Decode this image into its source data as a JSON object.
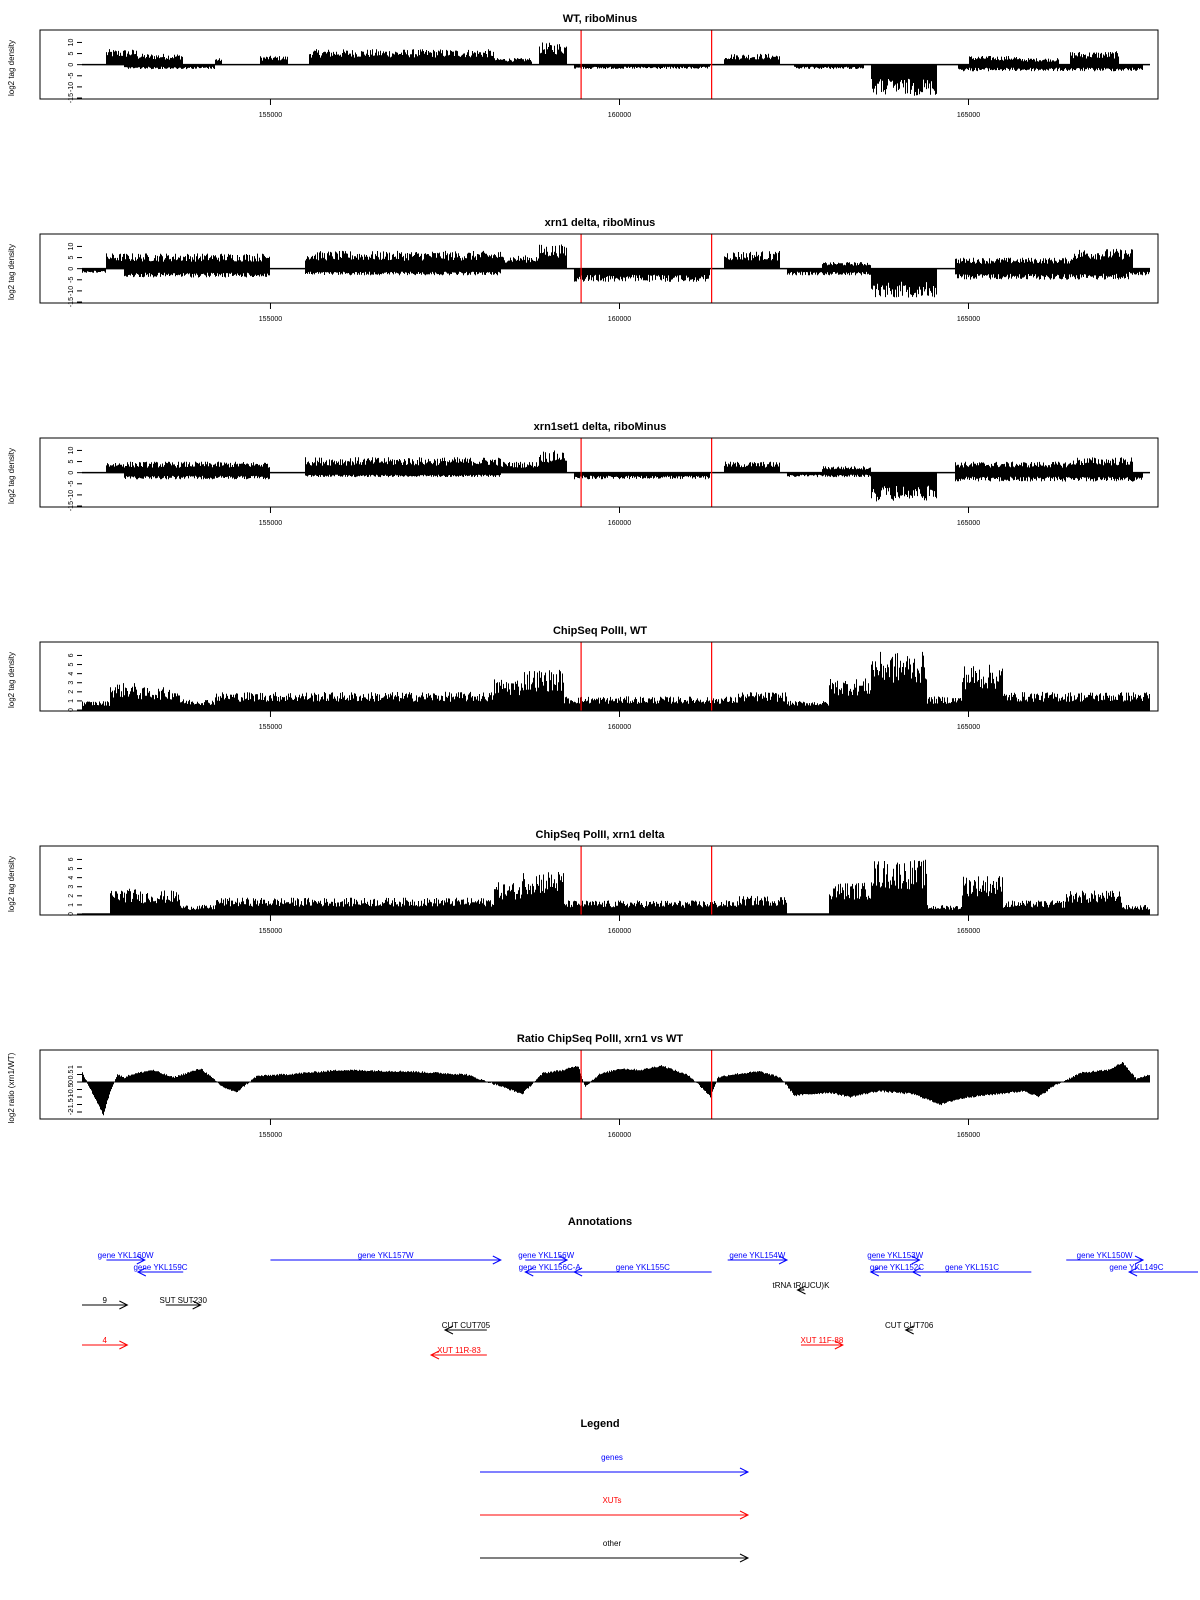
{
  "chart_data": [
    {
      "type": "area",
      "title": "WT, riboMinus",
      "ylabel": "log2 tag density",
      "xlim": [
        152300,
        167600
      ],
      "ylim": [
        -15,
        12
      ],
      "yticks": [
        -15,
        -10,
        -5,
        0,
        5,
        10
      ],
      "xticks": [
        155000,
        160000,
        165000
      ],
      "markers": [
        159450,
        161320
      ],
      "series": [
        {
          "direction": "up",
          "segments": [
            {
              "start": 152650,
              "end": 153100,
              "value": 7
            },
            {
              "start": 153100,
              "end": 153750,
              "value": 5
            },
            {
              "start": 154200,
              "end": 154300,
              "value": 3
            },
            {
              "start": 154850,
              "end": 155250,
              "value": 4
            },
            {
              "start": 155550,
              "end": 158200,
              "value": 7
            },
            {
              "start": 158200,
              "end": 158750,
              "value": 3
            },
            {
              "start": 158850,
              "end": 159250,
              "value": 10
            },
            {
              "start": 161500,
              "end": 162300,
              "value": 5
            },
            {
              "start": 165000,
              "end": 165700,
              "value": 4
            },
            {
              "start": 165700,
              "end": 166300,
              "value": 3
            },
            {
              "start": 166450,
              "end": 167150,
              "value": 6
            }
          ]
        },
        {
          "direction": "down",
          "segments": [
            {
              "start": 152900,
              "end": 154200,
              "value": 2
            },
            {
              "start": 159350,
              "end": 161300,
              "value": 2
            },
            {
              "start": 162500,
              "end": 163500,
              "value": 2
            },
            {
              "start": 163600,
              "end": 164550,
              "value": 14
            },
            {
              "start": 164850,
              "end": 167500,
              "value": 3
            }
          ]
        }
      ]
    },
    {
      "type": "area",
      "title": "xrn1 delta, riboMinus",
      "ylabel": "log2 tag density",
      "xlim": [
        152300,
        167600
      ],
      "ylim": [
        -15,
        12
      ],
      "yticks": [
        -15,
        -10,
        -5,
        0,
        5,
        10
      ],
      "xticks": [
        155000,
        160000,
        165000
      ],
      "markers": [
        159450,
        161320
      ],
      "series": [
        {
          "direction": "up",
          "segments": [
            {
              "start": 152650,
              "end": 155000,
              "value": 7
            },
            {
              "start": 155500,
              "end": 158300,
              "value": 8
            },
            {
              "start": 158300,
              "end": 158850,
              "value": 6
            },
            {
              "start": 158850,
              "end": 159250,
              "value": 11
            },
            {
              "start": 161500,
              "end": 162300,
              "value": 8
            },
            {
              "start": 162900,
              "end": 163600,
              "value": 3
            },
            {
              "start": 164800,
              "end": 166500,
              "value": 5
            },
            {
              "start": 166500,
              "end": 167350,
              "value": 9
            }
          ]
        },
        {
          "direction": "down",
          "segments": [
            {
              "start": 152300,
              "end": 152650,
              "value": 2
            },
            {
              "start": 152900,
              "end": 155000,
              "value": 4
            },
            {
              "start": 155500,
              "end": 158300,
              "value": 3
            },
            {
              "start": 159350,
              "end": 161300,
              "value": 6
            },
            {
              "start": 162400,
              "end": 163600,
              "value": 3
            },
            {
              "start": 163600,
              "end": 164550,
              "value": 13
            },
            {
              "start": 164800,
              "end": 167300,
              "value": 5
            },
            {
              "start": 167300,
              "end": 167600,
              "value": 3
            }
          ]
        }
      ]
    },
    {
      "type": "area",
      "title": "xrn1set1 delta, riboMinus",
      "ylabel": "log2 tag density",
      "xlim": [
        152300,
        167600
      ],
      "ylim": [
        -15,
        12
      ],
      "yticks": [
        -15,
        -10,
        -5,
        0,
        5,
        10
      ],
      "xticks": [
        155000,
        160000,
        165000
      ],
      "markers": [
        159450,
        161320
      ],
      "series": [
        {
          "direction": "up",
          "segments": [
            {
              "start": 152650,
              "end": 155000,
              "value": 5
            },
            {
              "start": 155500,
              "end": 158300,
              "value": 7
            },
            {
              "start": 158300,
              "end": 158850,
              "value": 5
            },
            {
              "start": 158850,
              "end": 159250,
              "value": 10
            },
            {
              "start": 161500,
              "end": 162300,
              "value": 5
            },
            {
              "start": 162900,
              "end": 163600,
              "value": 3
            },
            {
              "start": 164800,
              "end": 166500,
              "value": 5
            },
            {
              "start": 166500,
              "end": 167350,
              "value": 7
            }
          ]
        },
        {
          "direction": "down",
          "segments": [
            {
              "start": 152900,
              "end": 155000,
              "value": 3
            },
            {
              "start": 155500,
              "end": 158300,
              "value": 2
            },
            {
              "start": 159350,
              "end": 161300,
              "value": 3
            },
            {
              "start": 162400,
              "end": 163600,
              "value": 2
            },
            {
              "start": 163600,
              "end": 164550,
              "value": 13
            },
            {
              "start": 164800,
              "end": 167500,
              "value": 4
            }
          ]
        }
      ]
    },
    {
      "type": "area",
      "title": "ChipSeq PolII, WT",
      "ylabel": "log2 tag density",
      "xlim": [
        152300,
        167600
      ],
      "ylim": [
        0,
        6.6
      ],
      "yticks": [
        0,
        1,
        2,
        3,
        4,
        5,
        6
      ],
      "xticks": [
        155000,
        160000,
        165000
      ],
      "markers": [
        159450,
        161320
      ],
      "series": [
        {
          "direction": "up",
          "segments": [
            {
              "start": 152300,
              "end": 152700,
              "value": 1
            },
            {
              "start": 152700,
              "end": 153100,
              "value": 3
            },
            {
              "start": 153100,
              "end": 153700,
              "value": 2.5
            },
            {
              "start": 153700,
              "end": 154200,
              "value": 1.2
            },
            {
              "start": 154200,
              "end": 158200,
              "value": 2
            },
            {
              "start": 158200,
              "end": 158600,
              "value": 3.5
            },
            {
              "start": 158600,
              "end": 159200,
              "value": 4.5
            },
            {
              "start": 159200,
              "end": 161700,
              "value": 1.5
            },
            {
              "start": 161700,
              "end": 162400,
              "value": 2
            },
            {
              "start": 162400,
              "end": 163000,
              "value": 1
            },
            {
              "start": 163000,
              "end": 163600,
              "value": 3.5
            },
            {
              "start": 163600,
              "end": 164400,
              "value": 6.4
            },
            {
              "start": 164400,
              "end": 164900,
              "value": 1.5
            },
            {
              "start": 164900,
              "end": 165500,
              "value": 5
            },
            {
              "start": 165500,
              "end": 167600,
              "value": 2
            }
          ]
        }
      ]
    },
    {
      "type": "area",
      "title": "ChipSeq PolII, xrn1 delta",
      "ylabel": "log2 tag density",
      "xlim": [
        152300,
        167600
      ],
      "ylim": [
        0,
        6.6
      ],
      "yticks": [
        0,
        1,
        2,
        3,
        4,
        5,
        6
      ],
      "xticks": [
        155000,
        160000,
        165000
      ],
      "markers": [
        159450,
        161320
      ],
      "series": [
        {
          "direction": "up",
          "segments": [
            {
              "start": 152700,
              "end": 153100,
              "value": 2.8
            },
            {
              "start": 153100,
              "end": 153700,
              "value": 2.6
            },
            {
              "start": 153700,
              "end": 154200,
              "value": 1
            },
            {
              "start": 154200,
              "end": 158200,
              "value": 1.8
            },
            {
              "start": 158200,
              "end": 158600,
              "value": 3.5
            },
            {
              "start": 158600,
              "end": 159200,
              "value": 4.8
            },
            {
              "start": 159200,
              "end": 161700,
              "value": 1.5
            },
            {
              "start": 161700,
              "end": 162400,
              "value": 2
            },
            {
              "start": 163000,
              "end": 163600,
              "value": 3.5
            },
            {
              "start": 163600,
              "end": 164400,
              "value": 6
            },
            {
              "start": 164400,
              "end": 164900,
              "value": 1
            },
            {
              "start": 164900,
              "end": 165500,
              "value": 4.3
            },
            {
              "start": 165500,
              "end": 166400,
              "value": 1.5
            },
            {
              "start": 166400,
              "end": 167200,
              "value": 2.6
            },
            {
              "start": 167200,
              "end": 167600,
              "value": 1
            }
          ]
        }
      ]
    },
    {
      "type": "area",
      "title": "Ratio ChipSeq PolII, xrn1 vs WT",
      "ylabel": "log2 ratio (xrn1/WT)",
      "xlim": [
        152300,
        167600
      ],
      "ylim": [
        -2.4,
        1.6
      ],
      "yticks": [
        -2.0,
        -1.5,
        -1.0,
        -0.5,
        0.0,
        0.5,
        1.0
      ],
      "xticks": [
        155000,
        160000,
        165000
      ],
      "markers": [
        159450,
        161320
      ],
      "profile": {
        "x": [
          152300,
          152450,
          152600,
          152700,
          152800,
          152900,
          153000,
          153300,
          153600,
          154000,
          154300,
          154500,
          154800,
          155200,
          156000,
          157000,
          157800,
          158300,
          158600,
          158900,
          159200,
          159400,
          159500,
          159700,
          160000,
          160300,
          160600,
          161000,
          161200,
          161300,
          161400,
          161600,
          162000,
          162300,
          162500,
          163000,
          163300,
          163700,
          164200,
          164600,
          164800,
          165000,
          165400,
          165800,
          166000,
          166200,
          166600,
          167000,
          167200,
          167400,
          167600
        ],
        "y": [
          0.6,
          -0.8,
          -2.2,
          -0.6,
          0.5,
          0.3,
          0.5,
          0.8,
          0.3,
          0.9,
          -0.3,
          -0.7,
          0.4,
          0.5,
          0.8,
          0.7,
          0.5,
          -0.3,
          -0.8,
          0.6,
          0.8,
          1.1,
          -0.3,
          0.5,
          0.9,
          0.8,
          1.1,
          0.4,
          -0.5,
          -1.0,
          0.3,
          0.5,
          0.7,
          0.3,
          -0.9,
          -0.7,
          -1.0,
          -0.6,
          -0.8,
          -1.5,
          -1.2,
          -1.0,
          -0.8,
          -0.6,
          -1.0,
          -0.3,
          0.6,
          0.8,
          1.3,
          0.2,
          0.5
        ]
      }
    }
  ],
  "annotations": {
    "title": "Annotations",
    "lanes": [
      {
        "label": "gene YKL160W",
        "start": 152650,
        "end": 153200,
        "direction": "right",
        "color": "#0000ff",
        "lane": 0
      },
      {
        "label": "gene YKL159C",
        "start": 153100,
        "end": 153750,
        "direction": "left",
        "color": "#0000ff",
        "lane": 1
      },
      {
        "label": "gene YKL157W",
        "start": 155000,
        "end": 158300,
        "direction": "right",
        "color": "#0000ff",
        "lane": 0
      },
      {
        "label": "gene YKL156W",
        "start": 158650,
        "end": 159250,
        "direction": "right",
        "color": "#0000ff",
        "lane": 0
      },
      {
        "label": "gene YKL156C-A",
        "start": 158650,
        "end": 159350,
        "direction": "left",
        "color": "#0000ff",
        "lane": 1
      },
      {
        "label": "gene YKL155C",
        "start": 159350,
        "end": 161320,
        "direction": "left",
        "color": "#0000ff",
        "lane": 1
      },
      {
        "label": "gene YKL154W",
        "start": 161550,
        "end": 162400,
        "direction": "right",
        "color": "#0000ff",
        "lane": 0
      },
      {
        "label": "gene YKL153W",
        "start": 163600,
        "end": 164300,
        "direction": "right",
        "color": "#0000ff",
        "lane": 0
      },
      {
        "label": "gene YKL152C",
        "start": 163600,
        "end": 164350,
        "direction": "left",
        "color": "#0000ff",
        "lane": 1
      },
      {
        "label": "gene YKL151C",
        "start": 164200,
        "end": 165900,
        "direction": "left",
        "color": "#0000ff",
        "lane": 1
      },
      {
        "label": "gene YKL150W",
        "start": 166400,
        "end": 167500,
        "direction": "right",
        "color": "#0000ff",
        "lane": 0
      },
      {
        "label": "gene YKL149C",
        "start": 167300,
        "end": 169100,
        "direction": "left",
        "color": "#0000ff",
        "lane": 1
      },
      {
        "label": "tRNA tR(UCU)K",
        "start": 162550,
        "end": 162650,
        "direction": "left",
        "color": "#000000",
        "lane": 2
      },
      {
        "label": "9",
        "start": 152300,
        "end": 152950,
        "direction": "right",
        "color": "#000000",
        "lane": 3
      },
      {
        "label": "SUT SUT230",
        "start": 153500,
        "end": 154000,
        "direction": "right",
        "color": "#000000",
        "lane": 3
      },
      {
        "label": "CUT CUT705",
        "start": 157500,
        "end": 158100,
        "direction": "left",
        "color": "#000000",
        "lane": 4
      },
      {
        "label": "CUT CUT706",
        "start": 164100,
        "end": 164200,
        "direction": "left",
        "color": "#000000",
        "lane": 4
      },
      {
        "label": "4",
        "start": 152300,
        "end": 152950,
        "direction": "right",
        "color": "#ff0000",
        "lane": 5
      },
      {
        "label": "XUT 11R-83",
        "start": 157300,
        "end": 158100,
        "direction": "left",
        "color": "#ff0000",
        "lane": 6
      },
      {
        "label": "XUT 11F-88",
        "start": 162600,
        "end": 163200,
        "direction": "right",
        "color": "#ff0000",
        "lane": 5
      }
    ]
  },
  "legend": {
    "title": "Legend",
    "items": [
      {
        "label": "genes",
        "color": "#0000ff"
      },
      {
        "label": "XUTs",
        "color": "#ff0000"
      },
      {
        "label": "other",
        "color": "#000000"
      }
    ]
  },
  "colors": {
    "marker": "#ff0000",
    "fill": "#000000"
  }
}
